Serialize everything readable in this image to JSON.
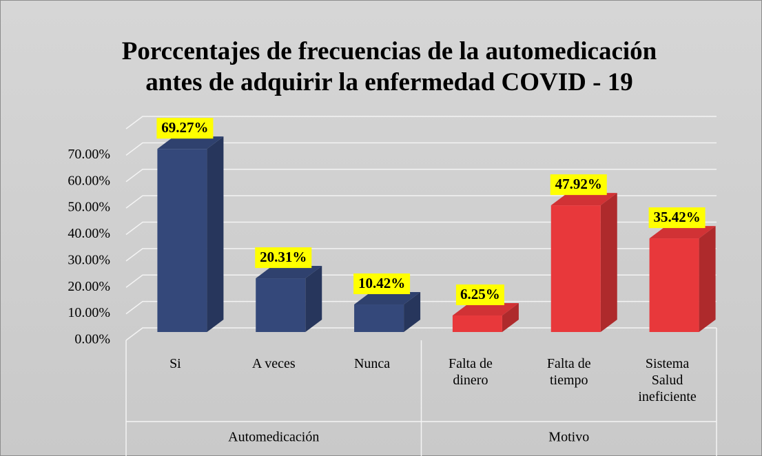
{
  "chart_data": {
    "type": "bar3d",
    "title": "Porccentajes de frecuencias de la automedicación antes de adquirir la enfermedad COVID - 19",
    "categories": [
      "Si",
      "A veces",
      "Nunca",
      "Falta de dinero",
      "Falta de tiempo",
      "Sistema Salud ineficiente"
    ],
    "groups": [
      {
        "name": "Automedicación",
        "span": 3
      },
      {
        "name": "Motivo",
        "span": 3
      }
    ],
    "values": [
      69.27,
      20.31,
      10.42,
      6.25,
      47.92,
      35.42
    ],
    "value_labels": [
      "69.27%",
      "20.31%",
      "10.42%",
      "6.25%",
      "47.92%",
      "35.42%"
    ],
    "colors": [
      "#34487a",
      "#34487a",
      "#34487a",
      "#e8383b",
      "#e8383b",
      "#e8383b"
    ],
    "ylim": [
      0,
      80
    ],
    "yticks": [
      {
        "value": 0,
        "label": "0.00%"
      },
      {
        "value": 10,
        "label": "10.00%"
      },
      {
        "value": 20,
        "label": "20.00%"
      },
      {
        "value": 30,
        "label": "30.00%"
      },
      {
        "value": 40,
        "label": "40.00%"
      },
      {
        "value": 50,
        "label": "50.00%"
      },
      {
        "value": 60,
        "label": "60.00%"
      },
      {
        "value": 70,
        "label": "70.00%"
      }
    ],
    "grid": true
  }
}
